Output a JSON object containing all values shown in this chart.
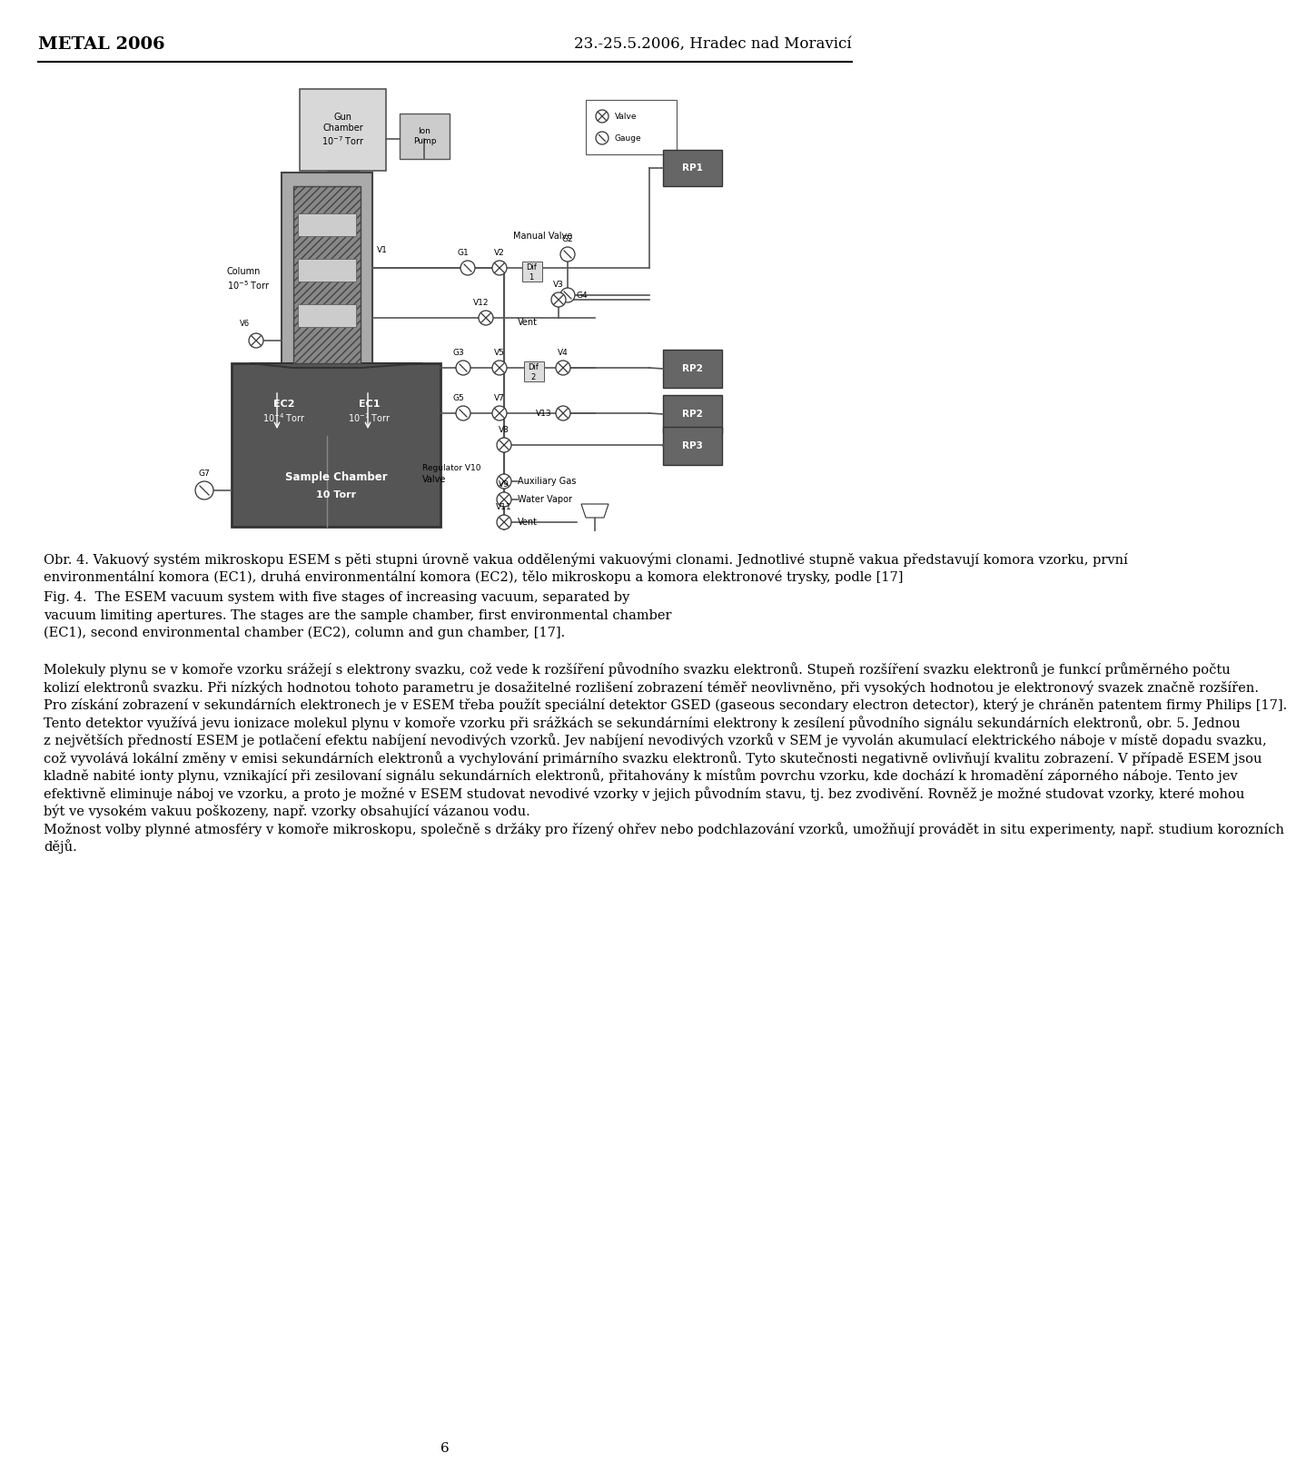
{
  "title_left": "METAL 2006",
  "title_right": "23.-25.5.2006, Hradec nad Moravicí",
  "caption_cz_lines": [
    "Obr. 4. Vakuový systém mikroskopu ESEM s pěti stupni úrovně vakua oddělenými vakuovými clonami. Jednotlivé stupně vakua představují komora vzorku, první",
    "environmentální komora (EC1), druhá environmentální komora (EC2), tělo mikroskopu a komora elektronové trysky, podle [17]"
  ],
  "caption_en_lines": [
    "Fig. 4.  The ESEM vacuum system with five stages of increasing vacuum, separated by",
    "vacuum limiting apertures. The stages are the sample chamber, first environmental chamber",
    "(EC1), second environmental chamber (EC2), column and gun chamber, [17]."
  ],
  "body_lines": [
    "Molekuly plynu se v komoře vzorku srážejí s elektrony svazku, což vede k rozšíření původního svazku elektronů. Stupeň rozšíření svazku elektronů je funkcí průměrného počtu",
    "kolizí elektronů svazku. Při nízkých hodnotou tohoto parametru je dosažitelné rozlišení zobrazení téměř neovlivněno, při vysokých hodnotou je elektronový svazek značně rozšířen.",
    "Pro získání zobrazení v sekundárních elektronech je v ESEM třeba použít speciální detektor GSED (gaseous secondary electron detector), který je chráněn patentem firmy Philips [17].",
    "Tento detektor využívá jevu ionizace molekul plynu v komoře vzorku při srážkách se sekundárními elektrony k zesílení původního signálu sekundárních elektronů, obr. 5. Jednou",
    "z největších předností ESEM je potlačení efektu nabíjení nevodivých vzorků. Jev nabíjení nevodivých vzorků v SEM je vyvolán akumulací elektrického náboje v místě dopadu svazku,",
    "což vyvolává lokální změny v emisi sekundárních elektronů a vychylování primárního svazku elektronů. Tyto skutečnosti negativně ovlivňují kvalitu zobrazení. V případě ESEM jsou",
    "kladně nabité ionty plynu, vznikající při zesilovaní signálu sekundárních elektronů, přitahovány k místům povrchu vzorku, kde dochází k hromadění záporného náboje. Tento jev",
    "efektivně eliminuje náboj ve vzorku, a proto je možné v ESEM studovat nevodivé vzorky v jejich původním stavu, tj. bez zvodivění. Rovněž je možné studovat vzorky, které mohou",
    "být ve vysokém vakuu poškozeny, např. vzorky obsahující vázanou vodu.",
    "Možnost volby plynné atmosféry v komoře mikroskopu, společně s držáky pro řízený ohřev nebo podchlazování vzorků, umožňují provádět in situ experimenty, např. studium korozních",
    "dějů."
  ],
  "page_number": "6",
  "bg_color": "#ffffff",
  "text_color": "#000000",
  "gray_dark": "#444444",
  "gray_mid": "#888888",
  "gray_light": "#bbbbbb",
  "gray_hatch": "#666666"
}
